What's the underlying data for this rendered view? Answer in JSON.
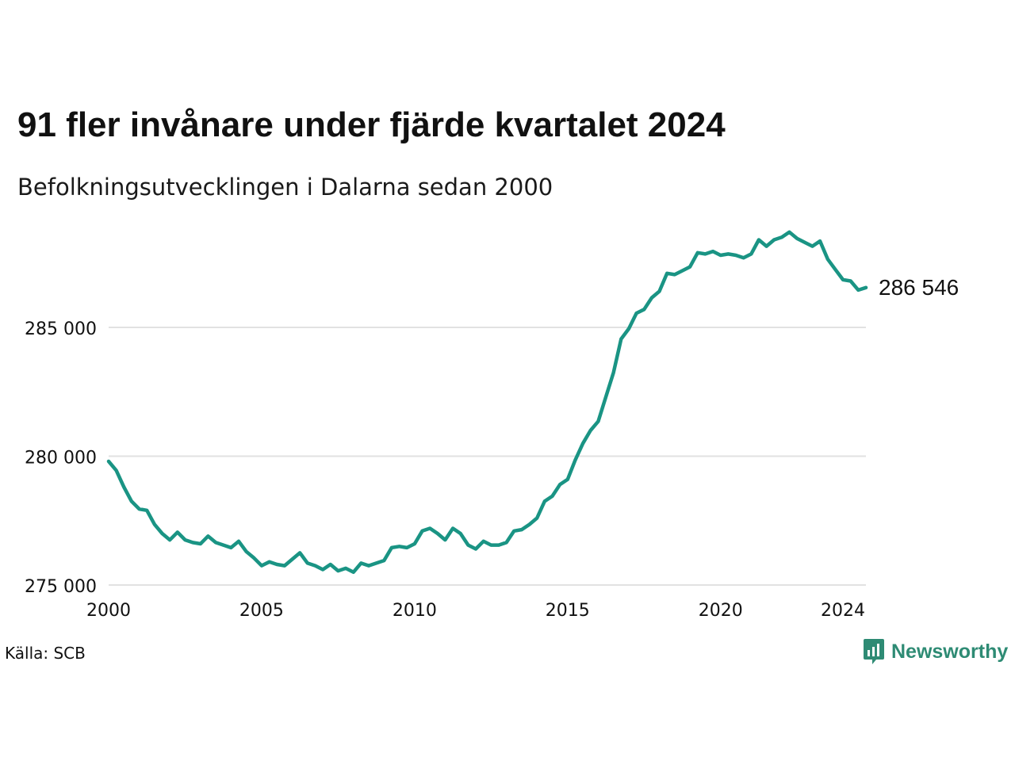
{
  "header": {
    "title": "91 fler invånare under fjärde kvartalet 2024",
    "subtitle": "Befolkningsutvecklingen i Dalarna sedan 2000"
  },
  "footer": {
    "source": "Källa: SCB",
    "brand": "Newsworthy",
    "brand_icon": "newsworthy-logo-icon"
  },
  "colors": {
    "line": "#1a9484",
    "grid": "#e2e2e2",
    "brand": "#2e8b74"
  },
  "chart_data": {
    "type": "line",
    "x_start": 2000,
    "x_step": 0.25,
    "values": [
      279800,
      279450,
      278800,
      278250,
      277950,
      277900,
      277350,
      277000,
      276750,
      277050,
      276750,
      276650,
      276600,
      276900,
      276650,
      276550,
      276450,
      276700,
      276300,
      276050,
      275750,
      275900,
      275800,
      275750,
      276000,
      276250,
      275850,
      275750,
      275600,
      275800,
      275550,
      275650,
      275500,
      275850,
      275750,
      275850,
      275950,
      276450,
      276500,
      276450,
      276600,
      277100,
      277200,
      277000,
      276750,
      277200,
      277000,
      276550,
      276400,
      276700,
      276550,
      276550,
      276650,
      277100,
      277150,
      277350,
      277600,
      278250,
      278450,
      278900,
      279100,
      279850,
      280500,
      281000,
      281350,
      282300,
      283250,
      284550,
      284950,
      285550,
      285700,
      286150,
      286400,
      287100,
      287050,
      287200,
      287350,
      287900,
      287850,
      287950,
      287800,
      287850,
      287800,
      287700,
      287850,
      288400,
      288150,
      288400,
      288500,
      288700,
      288450,
      288300,
      288150,
      288350,
      287650,
      287250,
      286850,
      286800,
      286450,
      286546
    ],
    "last_value_label": "286 546",
    "xlim": [
      2000,
      2024.75
    ],
    "ylim": [
      275000,
      288800
    ],
    "x_ticks": [
      2000,
      2005,
      2010,
      2015,
      2020,
      2024
    ],
    "x_tick_labels": [
      "2000",
      "2005",
      "2010",
      "2015",
      "2020",
      "2024"
    ],
    "y_ticks": [
      275000,
      280000,
      285000
    ],
    "y_tick_labels": [
      "275 000",
      "280 000",
      "285 000"
    ],
    "grid": true,
    "legend": "none"
  }
}
